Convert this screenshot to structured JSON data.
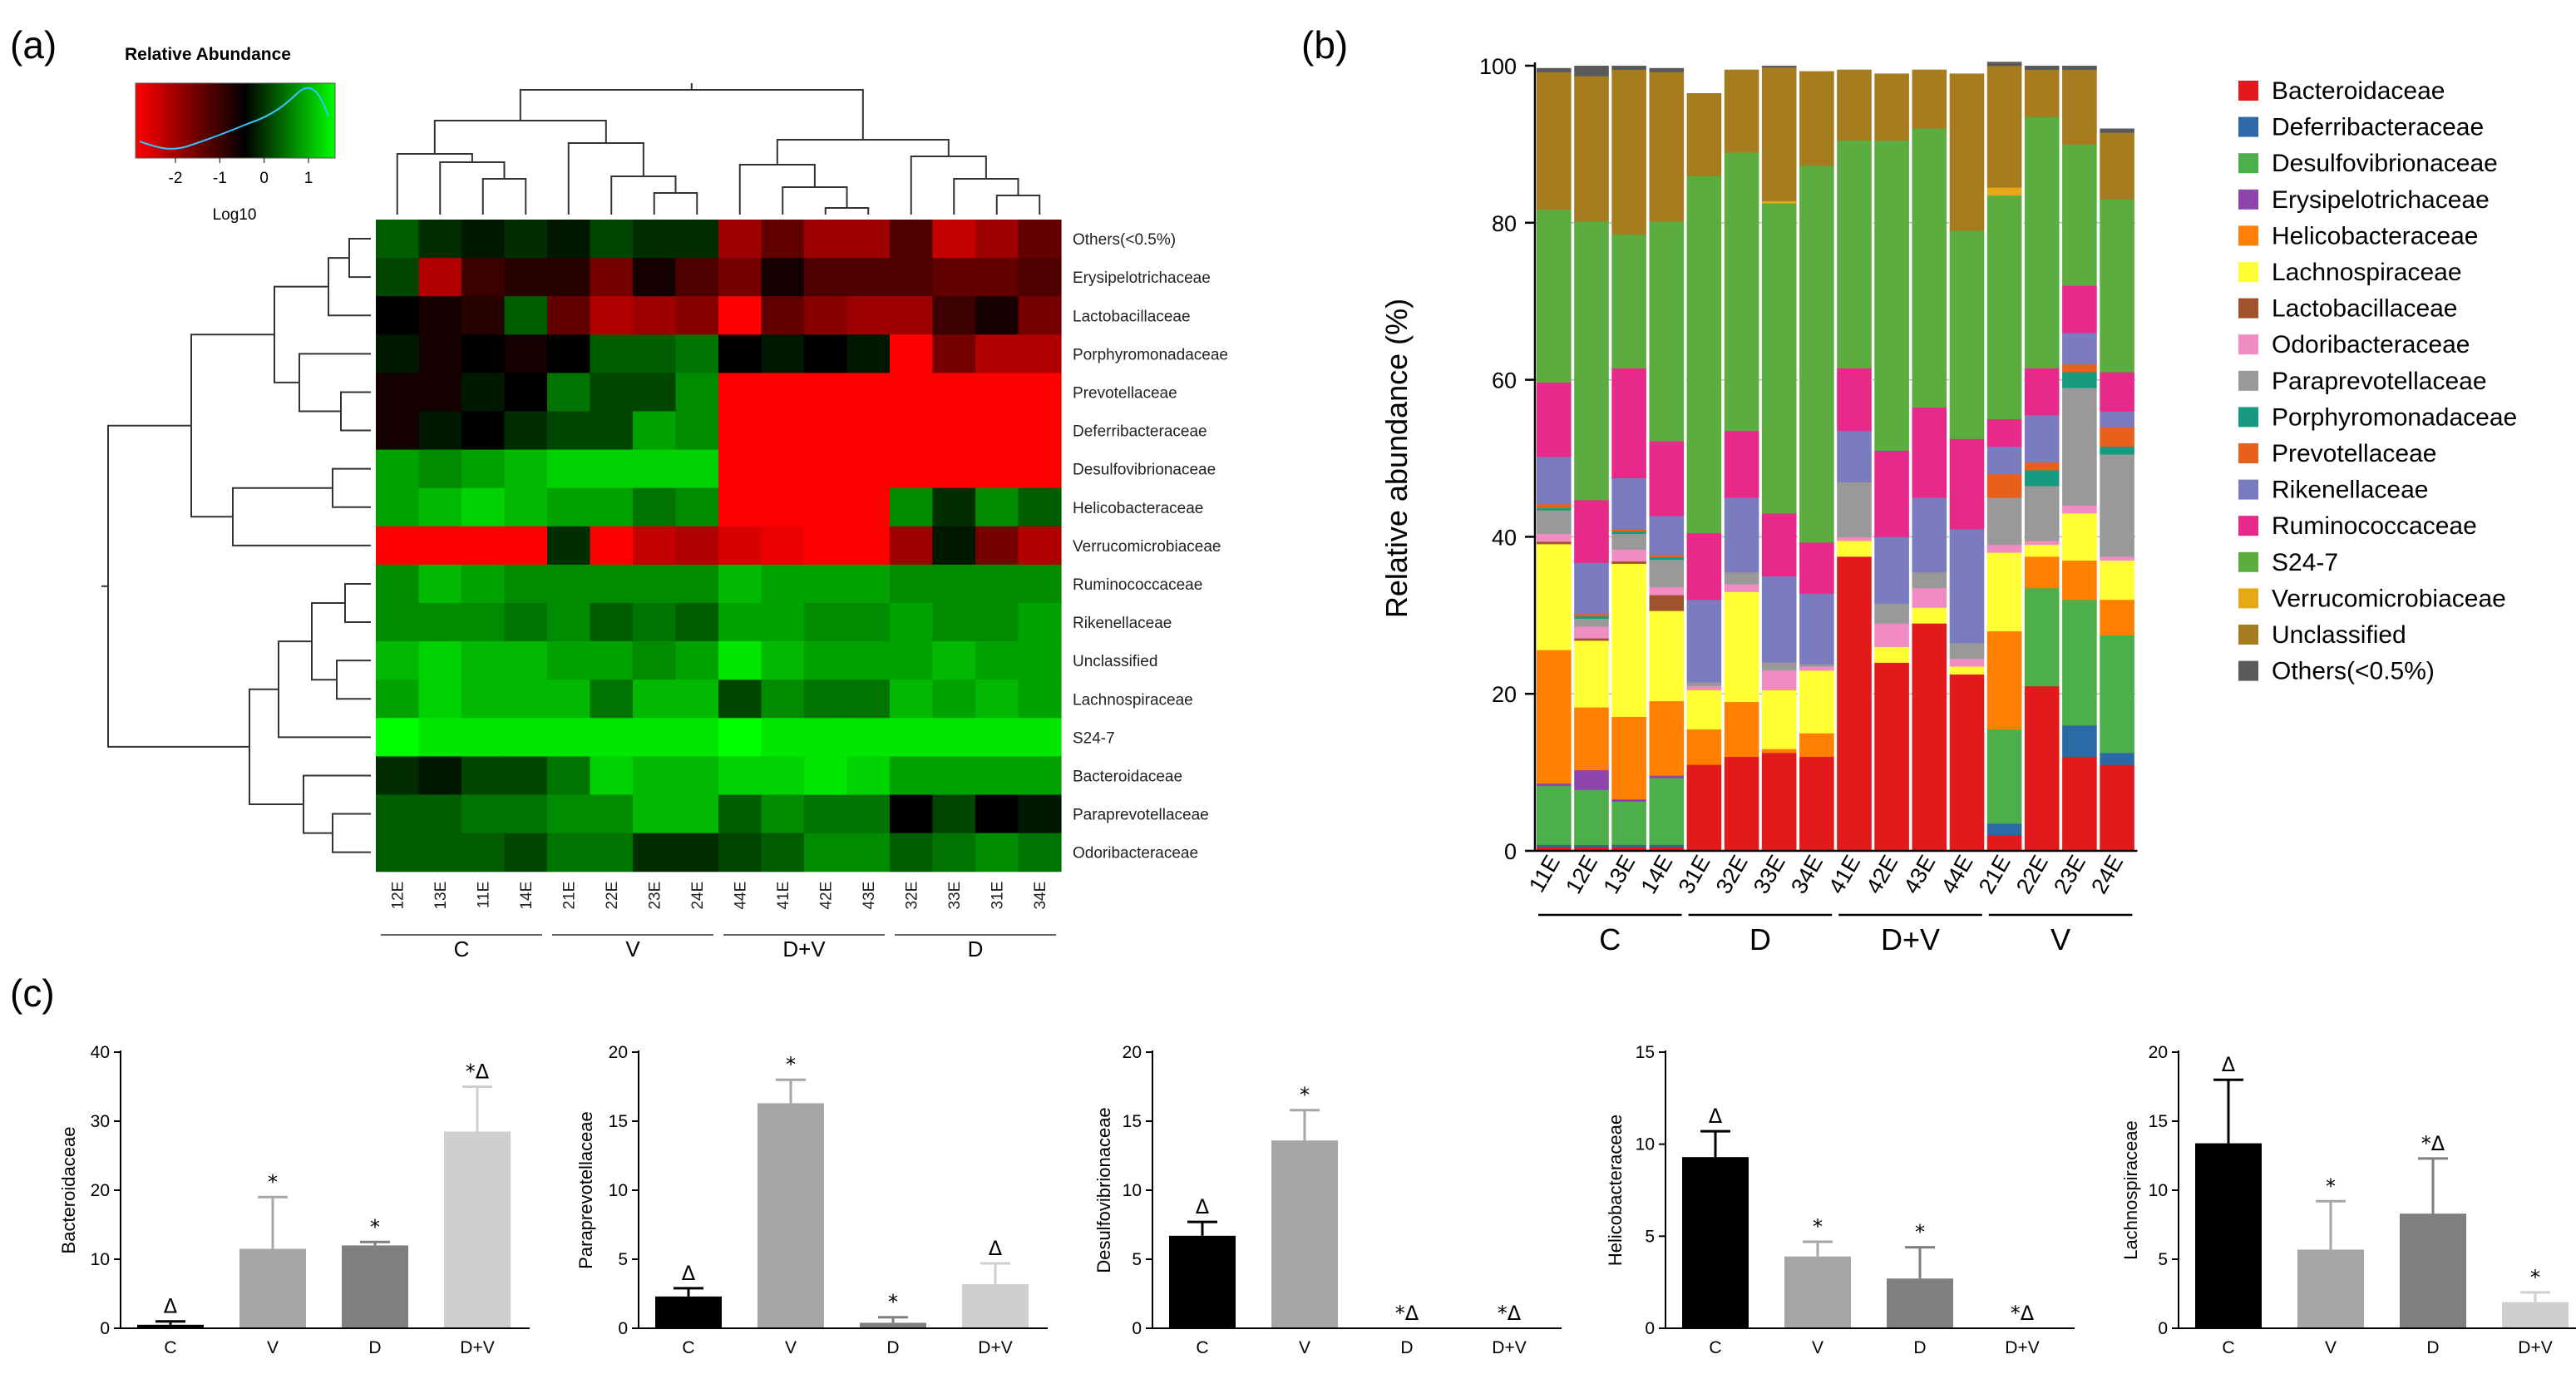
{
  "panel_labels": {
    "a": "(a)",
    "b": "(b)",
    "c": "(c)"
  },
  "chart_data": [
    {
      "type": "heatmap",
      "panel": "a",
      "color_key": {
        "title": "Relative Abundance",
        "scale_label": "Log10",
        "ticks": [
          "-2",
          "-1",
          "0",
          "1"
        ],
        "low_color": "#ff0000",
        "mid_color": "#000000",
        "high_color": "#00ff00"
      },
      "columns": [
        "12E",
        "13E",
        "11E",
        "14E",
        "21E",
        "22E",
        "23E",
        "24E",
        "44E",
        "41E",
        "42E",
        "43E",
        "32E",
        "33E",
        "31E",
        "34E"
      ],
      "column_groups": [
        {
          "label": "C",
          "n": 4
        },
        {
          "label": "V",
          "n": 4
        },
        {
          "label": "D+V",
          "n": 4
        },
        {
          "label": "D",
          "n": 4
        }
      ],
      "rows": [
        "Others(<0.5%)",
        "Erysipelotrichaceae",
        "Lactobacillaceae",
        "Porphyromonadaceae",
        "Prevotellaceae",
        "Deferribacteraceae",
        "Desulfovibrionaceae",
        "Helicobacteraceae",
        "Verrucomicrobiaceae",
        "Ruminococcaceae",
        "Rikenellaceae",
        "Unclassified",
        "Lachnospiraceae",
        "S24-7",
        "Bacteroidaceae",
        "Paraprevotellaceae",
        "Odoribacteraceae"
      ],
      "values": [
        [
          0.4,
          0.2,
          0.1,
          0.2,
          0.1,
          0.3,
          0.2,
          0.2,
          -0.8,
          -0.5,
          -0.8,
          -0.8,
          -0.4,
          -1.0,
          -0.8,
          -0.5
        ],
        [
          0.3,
          -0.9,
          -0.3,
          -0.2,
          -0.2,
          -0.6,
          -0.1,
          -0.4,
          -0.6,
          -0.1,
          -0.4,
          -0.4,
          -0.4,
          -0.5,
          -0.5,
          -0.4
        ],
        [
          0.0,
          -0.1,
          -0.2,
          0.4,
          -0.5,
          -0.9,
          -0.8,
          -0.7,
          -1.3,
          -0.5,
          -0.7,
          -0.8,
          -0.8,
          -0.3,
          -0.1,
          -0.6
        ],
        [
          0.1,
          -0.1,
          0.0,
          -0.1,
          0.0,
          0.4,
          0.4,
          0.5,
          0.0,
          0.1,
          0.0,
          0.1,
          -1.3,
          -0.6,
          -0.9,
          -0.9
        ],
        [
          -0.1,
          -0.1,
          0.1,
          0.0,
          0.5,
          0.3,
          0.3,
          0.6,
          -2.5,
          -2.5,
          -2.5,
          -2.5,
          -2.5,
          -2.5,
          -2.5,
          -2.5
        ],
        [
          -0.1,
          0.1,
          0.0,
          0.2,
          0.3,
          0.3,
          0.7,
          0.6,
          -2.5,
          -2.5,
          -2.5,
          -2.5,
          -2.5,
          -2.5,
          -2.5,
          -2.5
        ],
        [
          0.7,
          0.6,
          0.7,
          0.8,
          0.9,
          0.9,
          0.9,
          0.9,
          -2.5,
          -2.5,
          -2.5,
          -2.5,
          -2.5,
          -2.5,
          -1.6,
          -2.5
        ],
        [
          0.7,
          0.8,
          0.9,
          0.8,
          0.7,
          0.7,
          0.5,
          0.6,
          -2.5,
          -2.5,
          -2.5,
          -2.5,
          0.6,
          0.2,
          0.6,
          0.4
        ],
        [
          -1.3,
          -1.3,
          -1.3,
          -1.3,
          0.2,
          -1.3,
          -1.0,
          -0.9,
          -1.1,
          -1.2,
          -1.3,
          -1.3,
          -0.8,
          0.1,
          -0.6,
          -0.9
        ],
        [
          0.6,
          0.8,
          0.7,
          0.6,
          0.6,
          0.6,
          0.6,
          0.6,
          0.8,
          0.7,
          0.7,
          0.7,
          0.6,
          0.6,
          0.6,
          0.6
        ],
        [
          0.6,
          0.6,
          0.6,
          0.5,
          0.6,
          0.4,
          0.5,
          0.4,
          0.7,
          0.7,
          0.6,
          0.6,
          0.7,
          0.6,
          0.6,
          0.7
        ],
        [
          0.8,
          0.9,
          0.8,
          0.8,
          0.7,
          0.7,
          0.6,
          0.7,
          1.0,
          0.8,
          0.7,
          0.7,
          0.7,
          0.8,
          0.7,
          0.7
        ],
        [
          0.7,
          0.9,
          0.8,
          0.8,
          0.8,
          0.5,
          0.8,
          0.8,
          0.3,
          0.6,
          0.5,
          0.5,
          0.8,
          0.7,
          0.8,
          0.7
        ],
        [
          1.1,
          1.0,
          1.0,
          1.0,
          1.0,
          1.0,
          1.0,
          1.0,
          1.1,
          1.0,
          1.0,
          1.0,
          1.0,
          1.0,
          1.0,
          1.0
        ],
        [
          0.2,
          0.1,
          0.3,
          0.3,
          0.5,
          0.9,
          0.8,
          0.8,
          0.9,
          0.9,
          1.0,
          0.9,
          0.7,
          0.7,
          0.7,
          0.7
        ],
        [
          0.4,
          0.4,
          0.5,
          0.5,
          0.6,
          0.6,
          0.8,
          0.8,
          0.4,
          0.6,
          0.5,
          0.5,
          0.0,
          0.3,
          0.0,
          0.1
        ],
        [
          0.4,
          0.4,
          0.4,
          0.3,
          0.5,
          0.5,
          0.2,
          0.2,
          0.3,
          0.4,
          0.6,
          0.6,
          0.4,
          0.5,
          0.6,
          0.5
        ]
      ]
    },
    {
      "type": "bar",
      "stacked": true,
      "panel": "b",
      "categories": [
        "11E",
        "12E",
        "13E",
        "14E",
        "31E",
        "32E",
        "33E",
        "34E",
        "41E",
        "42E",
        "43E",
        "44E",
        "21E",
        "22E",
        "23E",
        "24E"
      ],
      "groups": [
        {
          "label": "C",
          "n": 4
        },
        {
          "label": "D",
          "n": 4
        },
        {
          "label": "D+V",
          "n": 4
        },
        {
          "label": "V",
          "n": 4
        }
      ],
      "ylabel": "Relative abundance (%)",
      "ylim": [
        0,
        100
      ],
      "yticks": [
        "0",
        "20",
        "40",
        "60",
        "80",
        "100"
      ],
      "grid": true,
      "legend_position": "right",
      "series": [
        {
          "name": "Bacteroidaceae",
          "color": "#e31a1c",
          "values": [
            0.5,
            0.5,
            0.5,
            0.5,
            11,
            12,
            12.5,
            12,
            37.5,
            24,
            29,
            22.5,
            2,
            21,
            12,
            11
          ]
        },
        {
          "name": "Deferribacteraceae",
          "color": "#2b6aa6",
          "values": [
            0.3,
            0.3,
            0.3,
            0.3,
            0,
            0,
            0,
            0,
            0,
            0,
            0,
            0,
            1.5,
            0,
            4,
            1.5
          ]
        },
        {
          "name": "Desulfovibrionaceae",
          "color": "#4daf4a",
          "values": [
            7.5,
            7,
            5.5,
            8.5,
            0,
            0,
            0,
            0,
            0,
            0,
            0,
            0,
            12,
            12.5,
            16,
            15
          ]
        },
        {
          "name": "Erysipelotrichaceae",
          "color": "#8e44ad",
          "values": [
            0.3,
            2.5,
            0.3,
            0.3,
            0,
            0,
            0,
            0,
            0,
            0,
            0,
            0,
            0,
            0,
            0,
            0
          ]
        },
        {
          "name": "Helicobacteraceae",
          "color": "#ff7f00",
          "values": [
            17,
            8,
            10.5,
            9.5,
            4.5,
            7,
            0.5,
            3,
            0,
            0,
            0,
            0,
            12.5,
            4,
            5,
            4.5
          ]
        },
        {
          "name": "Lachnospiraceae",
          "color": "#ffff33",
          "values": [
            13.5,
            8.5,
            19.5,
            11.5,
            5,
            14,
            7.5,
            8,
            2,
            2,
            2,
            1,
            10,
            1.5,
            6,
            5
          ]
        },
        {
          "name": "Lactobacillaceae",
          "color": "#a0522d",
          "values": [
            0.3,
            0.3,
            0.3,
            2,
            0,
            0,
            0,
            0,
            0,
            0,
            0,
            0,
            0,
            0,
            0,
            0
          ]
        },
        {
          "name": "Odoribacteraceae",
          "color": "#f08bc3",
          "values": [
            1,
            1.5,
            1.5,
            1,
            0.5,
            1,
            2.5,
            0.5,
            0.5,
            3,
            2.5,
            1,
            1,
            0.5,
            1,
            0.5
          ]
        },
        {
          "name": "Paraprevotellaceae",
          "color": "#999999",
          "values": [
            3,
            1,
            2,
            3.5,
            0.5,
            1.5,
            1,
            0.3,
            7,
            2.5,
            2,
            2,
            6,
            7,
            15,
            13
          ]
        },
        {
          "name": "Porphyromonadaceae",
          "color": "#169b80",
          "values": [
            0.3,
            0.3,
            0.3,
            0.3,
            0,
            0,
            0,
            0,
            0,
            0,
            0,
            0,
            0,
            2,
            2,
            1
          ]
        },
        {
          "name": "Prevotellaceae",
          "color": "#e8601c",
          "values": [
            0.5,
            0.3,
            0.3,
            0.3,
            0,
            0,
            0,
            0,
            0,
            0,
            0,
            0,
            3,
            1,
            1,
            2.5
          ]
        },
        {
          "name": "Rikenellaceae",
          "color": "#7b7bbf",
          "values": [
            6,
            6.5,
            6.5,
            5,
            10.5,
            9.5,
            11,
            9,
            6.5,
            8.5,
            9.5,
            14.5,
            3.5,
            6,
            4,
            2
          ]
        },
        {
          "name": "Ruminococcaceae",
          "color": "#e7298a",
          "values": [
            9.5,
            8,
            14,
            9.5,
            8.5,
            8.5,
            8,
            6.5,
            8,
            11,
            11.5,
            11.5,
            3.5,
            6,
            6,
            5
          ]
        },
        {
          "name": "S24-7",
          "color": "#5aad3e",
          "values": [
            22,
            35.5,
            17,
            28,
            45.5,
            35.5,
            39.5,
            48,
            29,
            39.5,
            35.5,
            26.5,
            28.5,
            32,
            18,
            22
          ]
        },
        {
          "name": "Verrucomicrobiaceae",
          "color": "#e6a817",
          "values": [
            0,
            0,
            0,
            0,
            0,
            0,
            0.3,
            0,
            0,
            0,
            0,
            0,
            1,
            0,
            0,
            0
          ]
        },
        {
          "name": "Unclassified",
          "color": "#a67c1f",
          "values": [
            17.5,
            18.5,
            21,
            19,
            10.5,
            10.5,
            17,
            12,
            9,
            8.5,
            7.5,
            20,
            15.5,
            6,
            9.5,
            8.5
          ]
        },
        {
          "name": "Others(<0.5%)",
          "color": "#5a5a5a",
          "values": [
            0.5,
            1.3,
            0.5,
            0.5,
            0,
            0,
            0.2,
            0,
            0,
            0,
            0,
            0,
            0.5,
            0.5,
            0.5,
            0.5
          ]
        }
      ]
    },
    {
      "type": "bar",
      "panel": "c",
      "ylabel": "Bacteroidaceae",
      "categories": [
        "C",
        "V",
        "D",
        "D+V"
      ],
      "values": [
        0.5,
        11.5,
        12,
        28.5
      ],
      "errors": [
        0.5,
        7.5,
        0.5,
        6.5
      ],
      "marks": [
        "Δ",
        "*",
        "*",
        "*Δ"
      ],
      "ylim": [
        0,
        40
      ],
      "yticks": [
        "0",
        "10",
        "20",
        "30",
        "40"
      ],
      "colors": [
        "#000000",
        "#a6a6a6",
        "#7f7f7f",
        "#cfcfcf"
      ]
    },
    {
      "type": "bar",
      "panel": "c",
      "ylabel": "Paraprevotellaceae",
      "categories": [
        "C",
        "V",
        "D",
        "D+V"
      ],
      "values": [
        2.3,
        16.3,
        0.4,
        3.2
      ],
      "errors": [
        0.6,
        1.7,
        0.4,
        1.5
      ],
      "marks": [
        "Δ",
        "*",
        "*",
        "Δ"
      ],
      "ylim": [
        0,
        20
      ],
      "yticks": [
        "0",
        "5",
        "10",
        "15",
        "20"
      ],
      "colors": [
        "#000000",
        "#a6a6a6",
        "#7f7f7f",
        "#cfcfcf"
      ]
    },
    {
      "type": "bar",
      "panel": "c",
      "ylabel": "Desulfovibrionaceae",
      "categories": [
        "C",
        "V",
        "D",
        "D+V"
      ],
      "values": [
        6.7,
        13.6,
        0,
        0
      ],
      "errors": [
        1.0,
        2.2,
        0,
        0
      ],
      "marks": [
        "Δ",
        "*",
        "*Δ",
        "*Δ"
      ],
      "ylim": [
        0,
        20
      ],
      "yticks": [
        "0",
        "5",
        "10",
        "15",
        "20"
      ],
      "colors": [
        "#000000",
        "#a6a6a6",
        "#7f7f7f",
        "#cfcfcf"
      ]
    },
    {
      "type": "bar",
      "panel": "c",
      "ylabel": "Helicobacteraceae",
      "categories": [
        "C",
        "V",
        "D",
        "D+V"
      ],
      "values": [
        9.3,
        3.9,
        2.7,
        0
      ],
      "errors": [
        1.4,
        0.8,
        1.7,
        0
      ],
      "marks": [
        "Δ",
        "*",
        "*",
        "*Δ"
      ],
      "ylim": [
        0,
        15
      ],
      "yticks": [
        "0",
        "5",
        "10",
        "15"
      ],
      "colors": [
        "#000000",
        "#a6a6a6",
        "#7f7f7f",
        "#cfcfcf"
      ]
    },
    {
      "type": "bar",
      "panel": "c",
      "ylabel": "Lachnospiraceae",
      "categories": [
        "C",
        "V",
        "D",
        "D+V"
      ],
      "values": [
        13.4,
        5.7,
        8.3,
        1.9
      ],
      "errors": [
        4.6,
        3.5,
        4.0,
        0.7
      ],
      "marks": [
        "Δ",
        "*",
        "*Δ",
        "*"
      ],
      "ylim": [
        0,
        20
      ],
      "yticks": [
        "0",
        "5",
        "10",
        "15",
        "20"
      ],
      "colors": [
        "#000000",
        "#a6a6a6",
        "#7f7f7f",
        "#cfcfcf"
      ]
    }
  ]
}
